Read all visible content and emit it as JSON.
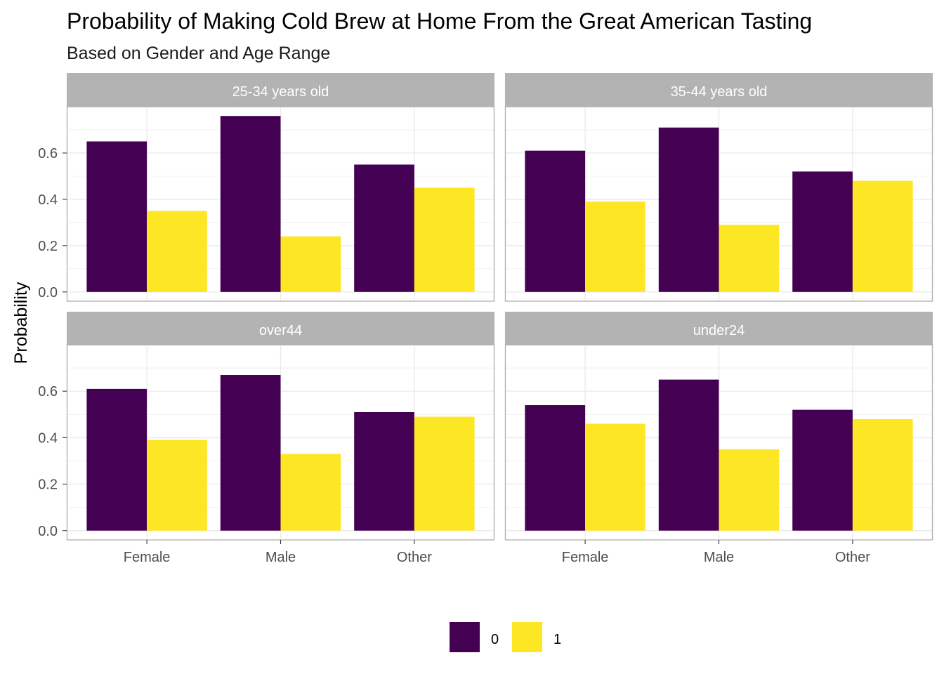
{
  "chart_data": {
    "type": "bar",
    "title": "Probability of Making Cold Brew at Home From the Great American Tasting",
    "subtitle": "Based on Gender and Age Range",
    "xlabel": "",
    "ylabel": "Probability",
    "ylim": [
      -0.04,
      0.8
    ],
    "yticks": [
      "0.0",
      "0.2",
      "0.4",
      "0.6"
    ],
    "ytick_values": [
      0,
      0.2,
      0.4,
      0.6
    ],
    "categories": [
      "Female",
      "Male",
      "Other"
    ],
    "series_names": [
      "0",
      "1"
    ],
    "colors": {
      "0": "#440154",
      "1": "#FDE725",
      "strip": "#B3B3B3",
      "grid": "#EBEBEB",
      "border": "#B3B3B3"
    },
    "grid": true,
    "legend": {
      "position": "bottom",
      "items": [
        "0",
        "1"
      ]
    },
    "panels": [
      {
        "label": "25-34 years old",
        "series": [
          {
            "name": "0",
            "values": [
              0.65,
              0.76,
              0.55
            ]
          },
          {
            "name": "1",
            "values": [
              0.35,
              0.24,
              0.45
            ]
          }
        ]
      },
      {
        "label": "35-44 years old",
        "series": [
          {
            "name": "0",
            "values": [
              0.61,
              0.71,
              0.52
            ]
          },
          {
            "name": "1",
            "values": [
              0.39,
              0.29,
              0.48
            ]
          }
        ]
      },
      {
        "label": "over44",
        "series": [
          {
            "name": "0",
            "values": [
              0.61,
              0.67,
              0.51
            ]
          },
          {
            "name": "1",
            "values": [
              0.39,
              0.33,
              0.49
            ]
          }
        ]
      },
      {
        "label": "under24",
        "series": [
          {
            "name": "0",
            "values": [
              0.54,
              0.65,
              0.52
            ]
          },
          {
            "name": "1",
            "values": [
              0.46,
              0.35,
              0.48
            ]
          }
        ]
      }
    ]
  }
}
